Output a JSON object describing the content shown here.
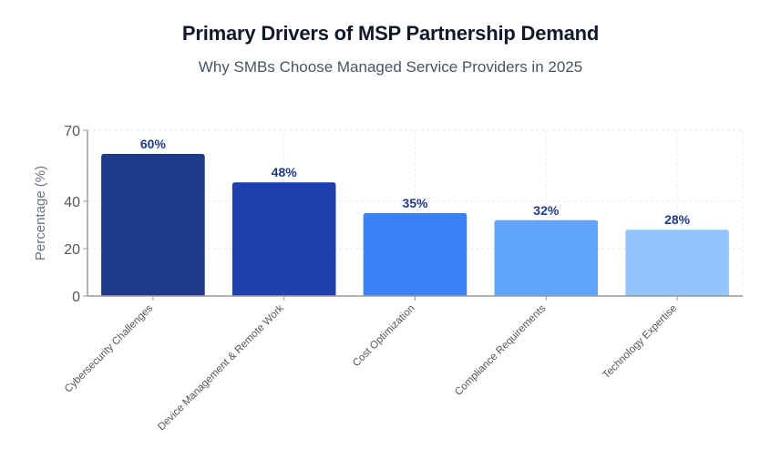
{
  "header": {
    "title": "Primary Drivers of MSP Partnership Demand",
    "subtitle": "Why SMBs Choose Managed Service Providers in 2025"
  },
  "chart_data": {
    "type": "bar",
    "title": "Primary Drivers of MSP Partnership Demand",
    "subtitle": "Why SMBs Choose Managed Service Providers in 2025",
    "xlabel": "",
    "ylabel": "Percentage (%)",
    "ylim": [
      0,
      70
    ],
    "yticks": [
      0,
      20,
      40,
      70
    ],
    "grid": true,
    "legend": "none",
    "categories": [
      "Cybersecurity Challenges",
      "Device Management & Remote Work",
      "Cost Optimization",
      "Compliance Requirements",
      "Technology Expertise"
    ],
    "values": [
      60,
      48,
      35,
      32,
      28
    ],
    "data_labels": [
      "60%",
      "48%",
      "35%",
      "32%",
      "28%"
    ],
    "colors": [
      "#1e3a8a",
      "#1e40af",
      "#3b82f6",
      "#60a5fa",
      "#93c5fd"
    ]
  }
}
